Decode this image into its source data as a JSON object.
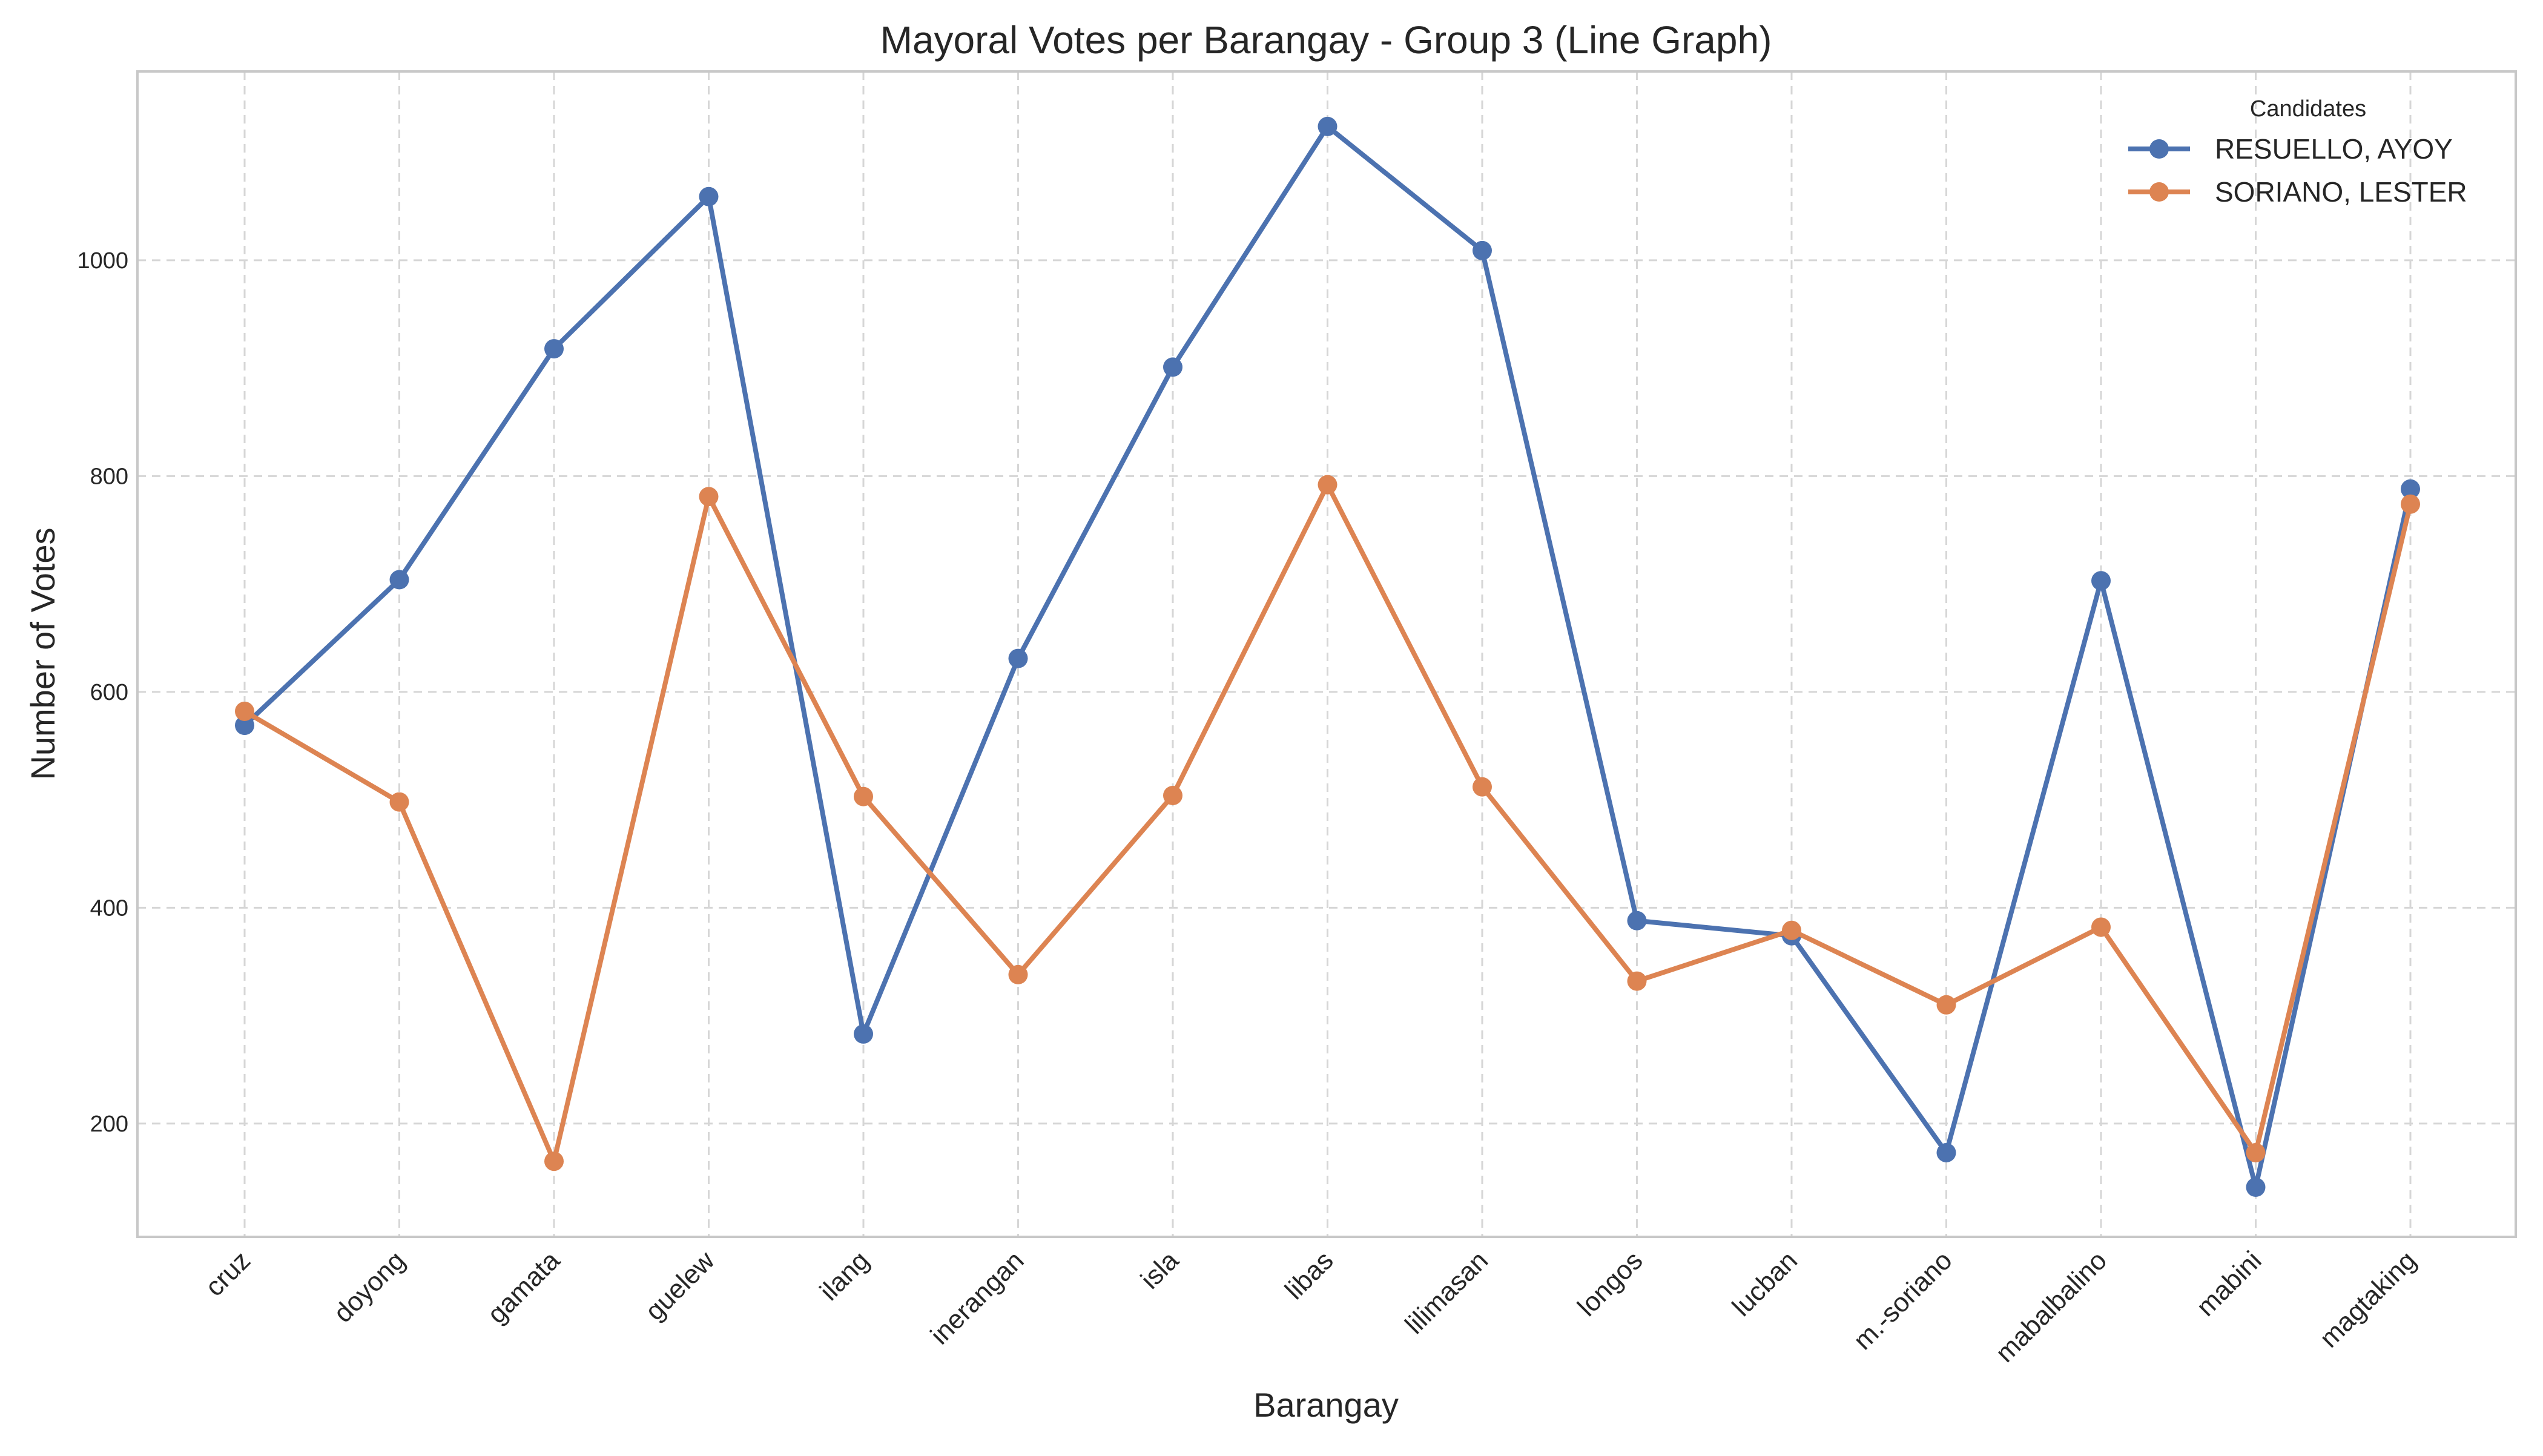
{
  "chart_data": {
    "type": "line",
    "title": "Mayoral Votes per Barangay - Group 3 (Line Graph)",
    "xlabel": "Barangay",
    "ylabel": "Number of Votes",
    "categories": [
      "cruz",
      "doyong",
      "gamata",
      "guelew",
      "ilang",
      "inerangan",
      "isla",
      "libas",
      "lilimasan",
      "longos",
      "lucban",
      "m.-soriano",
      "mabalbalino",
      "mabini",
      "magtaking"
    ],
    "ylim": [
      95,
      1175
    ],
    "yticks": [
      200,
      400,
      600,
      800,
      1000
    ],
    "grid": true,
    "legend": {
      "title": "Candidates",
      "placement": "top-right"
    },
    "series": [
      {
        "name": "RESUELLO, AYOY",
        "color": "#4c72b0",
        "values": [
          569,
          704,
          918,
          1059,
          283,
          631,
          901,
          1124,
          1009,
          388,
          374,
          173,
          703,
          141,
          788
        ]
      },
      {
        "name": "SORIANO, LESTER",
        "color": "#dd8452",
        "values": [
          582,
          498,
          165,
          781,
          503,
          338,
          504,
          792,
          512,
          332,
          379,
          310,
          382,
          173,
          774
        ]
      }
    ]
  }
}
